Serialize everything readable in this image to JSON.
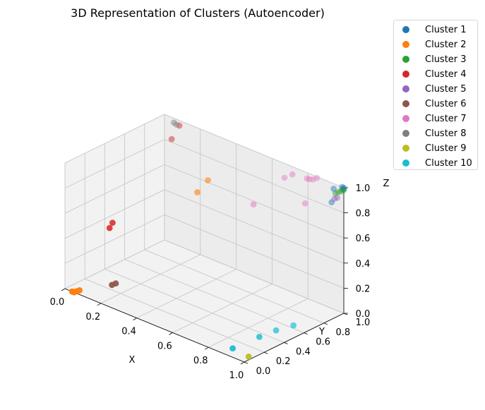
{
  "chart_data": {
    "type": "scatter",
    "projection": "3d",
    "title": "3D Representation of Clusters (Autoencoder)",
    "xlabel": "X",
    "ylabel": "Y",
    "zlabel": "Z",
    "xlim": [
      0,
      1
    ],
    "ylim": [
      0,
      1
    ],
    "zlim": [
      0,
      1
    ],
    "xticks": [
      "0.0",
      "0.2",
      "0.4",
      "0.6",
      "0.8",
      "1.0"
    ],
    "yticks": [
      "0.0",
      "0.2",
      "0.4",
      "0.6",
      "0.8",
      "1.0"
    ],
    "zticks": [
      "0.0",
      "0.2",
      "0.4",
      "0.6",
      "0.8",
      "1.0"
    ],
    "grid": true,
    "legend_position": "outside-top-right",
    "series": [
      {
        "name": "Cluster 1",
        "color": "#1f77b4",
        "points": [
          [
            1.0,
            1.0,
            1.0
          ],
          [
            0.99,
            1.0,
            1.0
          ],
          [
            1.0,
            0.99,
            0.99
          ],
          [
            0.96,
            0.97,
            0.98
          ],
          [
            0.96,
            0.95,
            0.88
          ],
          [
            1.0,
            1.0,
            0.99
          ]
        ]
      },
      {
        "name": "Cluster 2",
        "color": "#ff7f0e",
        "points": [
          [
            0.05,
            0.0,
            0.0
          ],
          [
            0.06,
            0.01,
            0.01
          ],
          [
            0.04,
            0.0,
            0.0
          ],
          [
            0.07,
            0.02,
            0.02
          ],
          [
            0.05,
            0.01,
            0.0
          ],
          [
            0.35,
            0.7,
            0.7
          ],
          [
            0.37,
            0.77,
            0.78
          ]
        ]
      },
      {
        "name": "Cluster 3",
        "color": "#2ca02c",
        "points": [
          [
            1.0,
            1.0,
            0.98
          ],
          [
            0.99,
            0.99,
            0.97
          ],
          [
            0.98,
            0.98,
            0.96
          ],
          [
            0.97,
            0.97,
            0.95
          ]
        ]
      },
      {
        "name": "Cluster 4",
        "color": "#d62728",
        "points": [
          [
            0.11,
            0.25,
            0.45
          ],
          [
            0.11,
            0.28,
            0.48
          ],
          [
            0.1,
            0.97,
            0.98
          ],
          [
            0.09,
            0.91,
            0.89
          ]
        ]
      },
      {
        "name": "Cluster 5",
        "color": "#9467bd",
        "points": [
          [
            0.98,
            0.97,
            0.92
          ],
          [
            0.97,
            0.96,
            0.91
          ]
        ]
      },
      {
        "name": "Cluster 6",
        "color": "#8c564b",
        "points": [
          [
            0.2,
            0.15,
            0.1
          ],
          [
            0.19,
            0.13,
            0.09
          ]
        ]
      },
      {
        "name": "Cluster 7",
        "color": "#e377c2",
        "points": [
          [
            0.58,
            0.85,
            0.68
          ],
          [
            0.68,
            0.98,
            0.9
          ],
          [
            0.73,
            0.97,
            0.96
          ],
          [
            0.8,
            0.99,
            0.96
          ],
          [
            0.82,
            0.98,
            0.97
          ],
          [
            0.85,
            1.0,
            0.99
          ],
          [
            0.84,
            0.98,
            0.98
          ],
          [
            0.84,
            0.9,
            0.82
          ]
        ]
      },
      {
        "name": "Cluster 8",
        "color": "#7f7f7f",
        "points": [
          [
            0.1,
            0.94,
            1.0
          ],
          [
            0.08,
            0.95,
            1.0
          ]
        ]
      },
      {
        "name": "Cluster 9",
        "color": "#bcbd22",
        "points": [
          [
            0.98,
            0.08,
            0.0
          ]
        ]
      },
      {
        "name": "Cluster 10",
        "color": "#17becf",
        "points": [
          [
            0.89,
            0.35,
            0.0
          ],
          [
            0.9,
            0.5,
            0.0
          ],
          [
            0.88,
            0.1,
            0.0
          ],
          [
            0.93,
            0.62,
            0.01
          ]
        ]
      }
    ]
  }
}
